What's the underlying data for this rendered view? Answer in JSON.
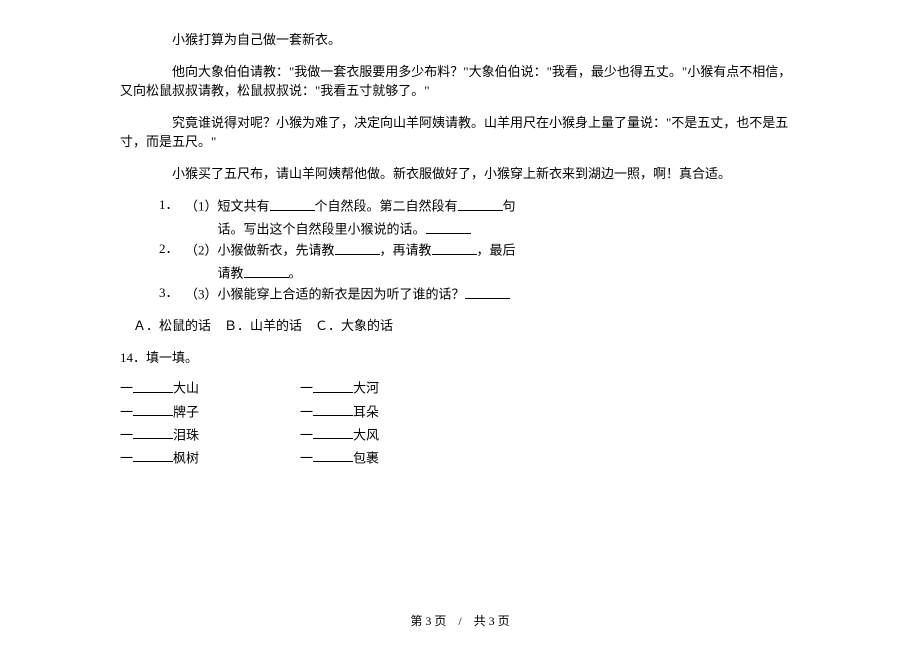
{
  "story": {
    "para1": "小猴打算为自己做一套新衣。",
    "para2": "他向大象伯伯请教：\"我做一套衣服要用多少布料？\"大象伯伯说：\"我看，最少也得五丈。\"小猴有点不相信，又向松鼠叔叔请教，松鼠叔叔说：\"我看五寸就够了。\"",
    "para3": "究竟谁说得对呢？小猴为难了，决定向山羊阿姨请教。山羊用尺在小猴身上量了量说：\"不是五丈，也不是五寸，而是五尺。\"",
    "para4": "小猴买了五尺布，请山羊阿姨帮他做。新衣服做好了，小猴穿上新衣来到湖边一照，啊！真合适。"
  },
  "questions": {
    "q1_num": "1．",
    "q1_prefix": "（1）短文共有",
    "q1_mid1": "个自然段。第二自然段有",
    "q1_mid2": "句",
    "q1_line2": "话。写出这个自然段里小猴说的话。",
    "q2_num": "2．",
    "q2_prefix": "（2）小猴做新衣，先请教",
    "q2_mid1": "，再请教",
    "q2_mid2": "，最后",
    "q2_line2": "请教",
    "q2_end": "。",
    "q3_num": "3．",
    "q3_text": "（3）小猴能穿上合适的新衣是因为听了谁的话？"
  },
  "options": {
    "text": "Ａ．松鼠的话　Ｂ．山羊的话　Ｃ．大象的话"
  },
  "fill": {
    "title_num": "14．",
    "title_text": "填一填。",
    "dash": "一",
    "items": {
      "r1c1": "大山",
      "r1c2": "大河",
      "r2c1": "牌子",
      "r2c2": "耳朵",
      "r3c1": "泪珠",
      "r3c2": "大风",
      "r4c1": "枫树",
      "r4c2": "包裹"
    }
  },
  "footer": {
    "text": "第 3 页　/　共 3 页"
  },
  "colors": {
    "text": "#000000",
    "background": "#ffffff"
  },
  "fonts": {
    "body_size": 13,
    "footer_size": 12,
    "family": "SimSun"
  }
}
